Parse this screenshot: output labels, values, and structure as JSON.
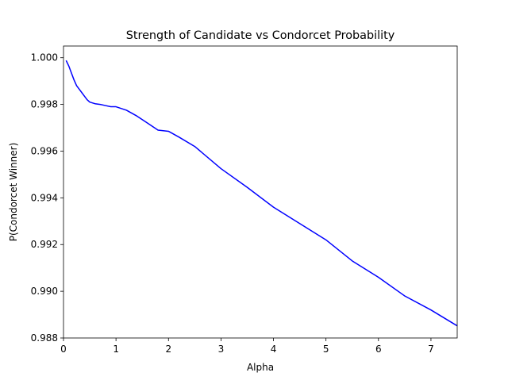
{
  "chart_data": {
    "type": "line",
    "title": "Strength of Candidate vs Condorcet Probability",
    "x_label": "Alpha",
    "y_label": "P(Condorcet Winner)",
    "x": [
      0.05,
      0.1,
      0.15,
      0.2,
      0.25,
      0.3,
      0.35,
      0.4,
      0.45,
      0.5,
      0.6,
      0.7,
      0.8,
      0.9,
      1.0,
      1.2,
      1.4,
      1.6,
      1.8,
      2.0,
      2.2,
      2.5,
      3.0,
      3.5,
      4.0,
      4.5,
      5.0,
      5.5,
      6.0,
      6.5,
      7.0,
      7.5
    ],
    "series": [
      {
        "name": "P(Condorcet Winner)",
        "color": "#0000ff",
        "values": [
          0.99988,
          0.99965,
          0.99935,
          0.99905,
          0.9988,
          0.99865,
          0.9985,
          0.99835,
          0.9982,
          0.9981,
          0.99803,
          0.998,
          0.99795,
          0.9979,
          0.9979,
          0.99775,
          0.9975,
          0.9972,
          0.9969,
          0.99685,
          0.9966,
          0.9962,
          0.99525,
          0.99445,
          0.9936,
          0.9929,
          0.9922,
          0.9913,
          0.9906,
          0.9898,
          0.9892,
          0.98852
        ]
      }
    ],
    "xlim": [
      0,
      7.5
    ],
    "xticks": [
      0,
      1,
      2,
      3,
      4,
      5,
      6,
      7
    ],
    "ylim": [
      0.988,
      1.0005
    ],
    "yticks": [
      {
        "value": 0.988,
        "label": "0.988"
      },
      {
        "value": 0.99,
        "label": "0.990"
      },
      {
        "value": 0.992,
        "label": "0.992"
      },
      {
        "value": 0.994,
        "label": "0.994"
      },
      {
        "value": 0.996,
        "label": "0.996"
      },
      {
        "value": 0.998,
        "label": "0.998"
      },
      {
        "value": 1.0,
        "label": "1.000"
      }
    ],
    "grid": false
  }
}
